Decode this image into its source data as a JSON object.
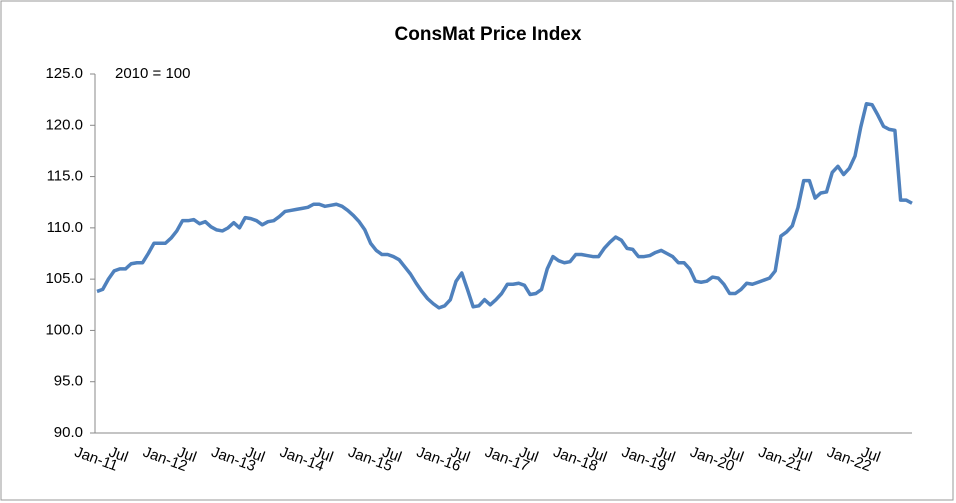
{
  "chart_data": {
    "type": "line",
    "title": "ConsMat Price Index",
    "annotation": "2010 = 100",
    "categories": [
      "Jan-11",
      null,
      null,
      null,
      null,
      null,
      "Jul",
      null,
      null,
      null,
      null,
      null,
      "Jan-12",
      null,
      null,
      null,
      null,
      null,
      "Jul",
      null,
      null,
      null,
      null,
      null,
      "Jan-13",
      null,
      null,
      null,
      null,
      null,
      "Jul",
      null,
      null,
      null,
      null,
      null,
      "Jan-14",
      null,
      null,
      null,
      null,
      null,
      "Jul",
      null,
      null,
      null,
      null,
      null,
      "Jan-15",
      null,
      null,
      null,
      null,
      null,
      "Jul",
      null,
      null,
      null,
      null,
      null,
      "Jan-16",
      null,
      null,
      null,
      null,
      null,
      "Jul",
      null,
      null,
      null,
      null,
      null,
      "Jan-17",
      null,
      null,
      null,
      null,
      null,
      "Jul",
      null,
      null,
      null,
      null,
      null,
      "Jan-18",
      null,
      null,
      null,
      null,
      null,
      "Jul",
      null,
      null,
      null,
      null,
      null,
      "Jan-19",
      null,
      null,
      null,
      null,
      null,
      "Jul",
      null,
      null,
      null,
      null,
      null,
      "Jan-20",
      null,
      null,
      null,
      null,
      null,
      "Jul",
      null,
      null,
      null,
      null,
      null,
      "Jan-21",
      null,
      null,
      null,
      null,
      null,
      "Jul",
      null,
      null,
      null,
      null,
      null,
      "Jan-22",
      null,
      null,
      null,
      null,
      null,
      "Jul",
      null,
      null,
      null,
      null,
      null
    ],
    "series": [
      {
        "name": "ConsMat Price Index",
        "color": "#4f81bd",
        "values": [
          103.8,
          104.0,
          105.0,
          105.8,
          106.0,
          106.0,
          106.5,
          106.6,
          106.6,
          107.5,
          108.5,
          108.5,
          108.5,
          109.0,
          109.7,
          110.7,
          110.7,
          110.8,
          110.4,
          110.6,
          110.1,
          109.8,
          109.7,
          110.0,
          110.5,
          110.0,
          111.0,
          110.9,
          110.7,
          110.3,
          110.6,
          110.7,
          111.1,
          111.6,
          111.7,
          111.8,
          111.9,
          112.0,
          112.3,
          112.3,
          112.1,
          112.2,
          112.3,
          112.1,
          111.7,
          111.2,
          110.6,
          109.8,
          108.5,
          107.8,
          107.4,
          107.4,
          107.2,
          106.9,
          106.2,
          105.5,
          104.6,
          103.8,
          103.1,
          102.6,
          102.2,
          102.4,
          103.0,
          104.8,
          105.6,
          104.0,
          102.3,
          102.4,
          103.0,
          102.5,
          103.0,
          103.6,
          104.5,
          104.5,
          104.6,
          104.4,
          103.5,
          103.6,
          104.0,
          106.0,
          107.2,
          106.8,
          106.6,
          106.7,
          107.4,
          107.4,
          107.3,
          107.2,
          107.2,
          108.0,
          108.6,
          109.1,
          108.8,
          108.0,
          107.9,
          107.2,
          107.2,
          107.3,
          107.6,
          107.8,
          107.5,
          107.2,
          106.6,
          106.6,
          106.0,
          104.8,
          104.7,
          104.8,
          105.2,
          105.1,
          104.5,
          103.6,
          103.6,
          104.0,
          104.6,
          104.5,
          104.7,
          104.9,
          105.1,
          105.8,
          109.2,
          109.6,
          110.2,
          112.0,
          114.6,
          114.6,
          112.9,
          113.4,
          113.5,
          115.4,
          116.0,
          115.2,
          115.8,
          117.0,
          119.8,
          122.1,
          122.0,
          121.0,
          119.9,
          119.6,
          119.5,
          112.7,
          112.7,
          112.4
        ]
      }
    ],
    "ylim": [
      90,
      125
    ],
    "yticks": [
      {
        "value": 90,
        "label": "90.0"
      },
      {
        "value": 95,
        "label": "95.0"
      },
      {
        "value": 100,
        "label": "100.0"
      },
      {
        "value": 105,
        "label": "105.0"
      },
      {
        "value": 110,
        "label": "110.0"
      },
      {
        "value": 115,
        "label": "115.0"
      },
      {
        "value": 120,
        "label": "120.0"
      },
      {
        "value": 125,
        "label": "125.0"
      }
    ],
    "grid": false
  }
}
